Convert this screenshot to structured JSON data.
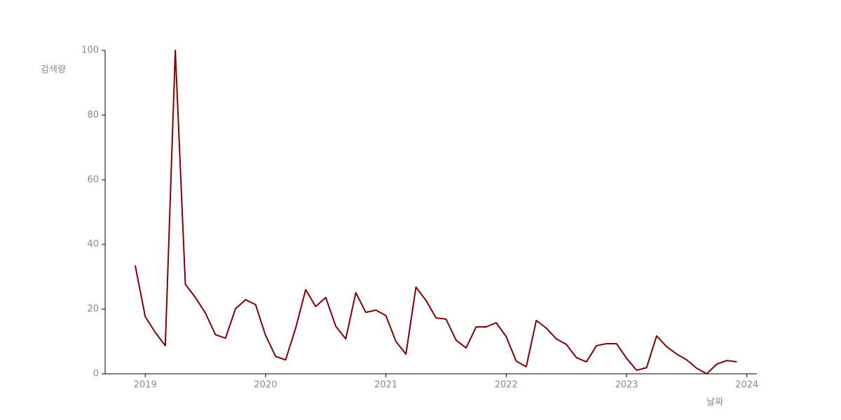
{
  "chart_data": {
    "type": "line",
    "x_label": "날짜",
    "y_label": "검색량",
    "x": [
      "2018-12",
      "2019-01",
      "2019-02",
      "2019-03",
      "2019-04",
      "2019-05",
      "2019-06",
      "2019-07",
      "2019-08",
      "2019-09",
      "2019-10",
      "2019-11",
      "2019-12",
      "2020-01",
      "2020-02",
      "2020-03",
      "2020-04",
      "2020-05",
      "2020-06",
      "2020-07",
      "2020-08",
      "2020-09",
      "2020-10",
      "2020-11",
      "2020-12",
      "2021-01",
      "2021-02",
      "2021-03",
      "2021-04",
      "2021-05",
      "2021-06",
      "2021-07",
      "2021-08",
      "2021-09",
      "2021-10",
      "2021-11",
      "2021-12",
      "2022-01",
      "2022-02",
      "2022-03",
      "2022-04",
      "2022-05",
      "2022-06",
      "2022-07",
      "2022-08",
      "2022-09",
      "2022-10",
      "2022-11",
      "2022-12",
      "2023-01",
      "2023-02",
      "2023-03",
      "2023-04",
      "2023-05",
      "2023-06",
      "2023-07",
      "2023-08",
      "2023-09",
      "2023-10",
      "2023-11",
      "2023-12"
    ],
    "series": [
      {
        "name": "검색량",
        "color": "#800000",
        "values": [
          33.5,
          17.7,
          12.8,
          8.7,
          100,
          27.7,
          23.6,
          18.8,
          12.1,
          11.0,
          20.1,
          22.9,
          21.4,
          11.9,
          5.4,
          4.3,
          14.1,
          26.0,
          20.8,
          23.6,
          14.7,
          10.8,
          25.1,
          19.0,
          19.7,
          18.0,
          10.0,
          6.1,
          26.8,
          22.7,
          17.3,
          16.9,
          10.4,
          8.0,
          14.5,
          14.5,
          15.8,
          11.5,
          3.9,
          2.2,
          16.5,
          14.1,
          10.8,
          9.1,
          5.0,
          3.7,
          8.7,
          9.3,
          9.3,
          4.8,
          1.1,
          1.9,
          11.7,
          8.4,
          6.1,
          4.3,
          1.7,
          0,
          3.0,
          4.1,
          3.7
        ]
      }
    ],
    "xlim": [
      "2018-09",
      "2024-02"
    ],
    "xticks": [
      {
        "value": "2019-01",
        "label": "2019"
      },
      {
        "value": "2020-01",
        "label": "2020"
      },
      {
        "value": "2021-01",
        "label": "2021"
      },
      {
        "value": "2022-01",
        "label": "2022"
      },
      {
        "value": "2023-01",
        "label": "2023"
      },
      {
        "value": "2024-01",
        "label": "2024"
      }
    ],
    "ylim": [
      0,
      100
    ],
    "yticks": [
      0,
      20,
      40,
      60,
      80,
      100
    ],
    "grid": false
  }
}
